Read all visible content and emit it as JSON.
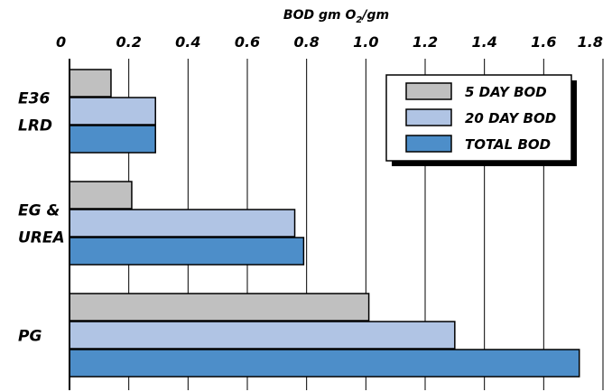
{
  "chart_data": {
    "type": "bar",
    "orientation": "horizontal",
    "title": "",
    "xlabel_prefix": "BOD gm O",
    "xlabel_subscript": "2",
    "xlabel_suffix": "/gm",
    "ylabel": "",
    "xlim": [
      0,
      1.8
    ],
    "x_ticks": [
      "0",
      "0.2",
      "0.4",
      "0.6",
      "0.8",
      "1.0",
      "1.2",
      "1.4",
      "1.6",
      "1.8"
    ],
    "grid": true,
    "legend_position": "top-right",
    "categories": [
      {
        "lines": [
          "E36",
          "LRD"
        ]
      },
      {
        "lines": [
          "EG &",
          "UREA"
        ]
      },
      {
        "lines": [
          "PG"
        ]
      }
    ],
    "series": [
      {
        "name": "5 DAY BOD",
        "color": "#c0c0c0",
        "values": [
          0.14,
          0.21,
          1.01
        ]
      },
      {
        "name": "20 DAY BOD",
        "color": "#b0c4e4",
        "values": [
          0.29,
          0.76,
          1.3
        ]
      },
      {
        "name": "TOTAL BOD",
        "color": "#4d8ec9",
        "values": [
          0.29,
          0.79,
          1.72
        ]
      }
    ]
  }
}
